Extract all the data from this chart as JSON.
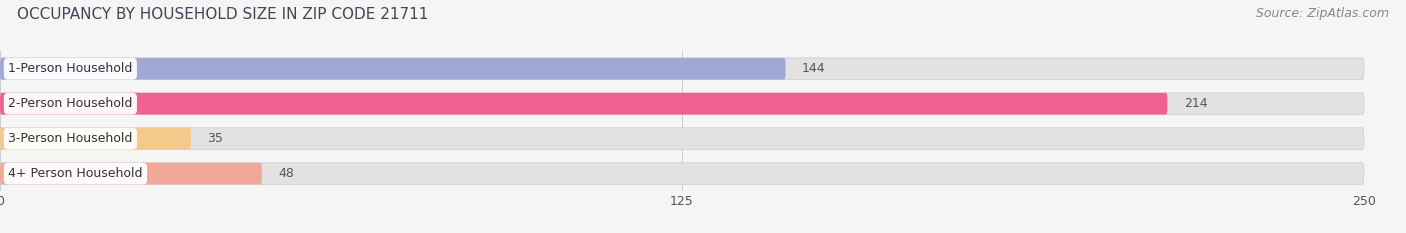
{
  "title": "OCCUPANCY BY HOUSEHOLD SIZE IN ZIP CODE 21711",
  "source": "Source: ZipAtlas.com",
  "categories": [
    "1-Person Household",
    "2-Person Household",
    "3-Person Household",
    "4+ Person Household"
  ],
  "values": [
    144,
    214,
    35,
    48
  ],
  "bar_colors": [
    "#a0a8d8",
    "#f06090",
    "#f5c98a",
    "#f0a898"
  ],
  "xlim": [
    0,
    250
  ],
  "xticks": [
    0,
    125,
    250
  ],
  "background_color": "#f5f5f5",
  "bar_bg_color": "#e2e2e2",
  "title_fontsize": 11,
  "source_fontsize": 9,
  "label_fontsize": 9,
  "value_fontsize": 9,
  "bar_height": 0.62
}
